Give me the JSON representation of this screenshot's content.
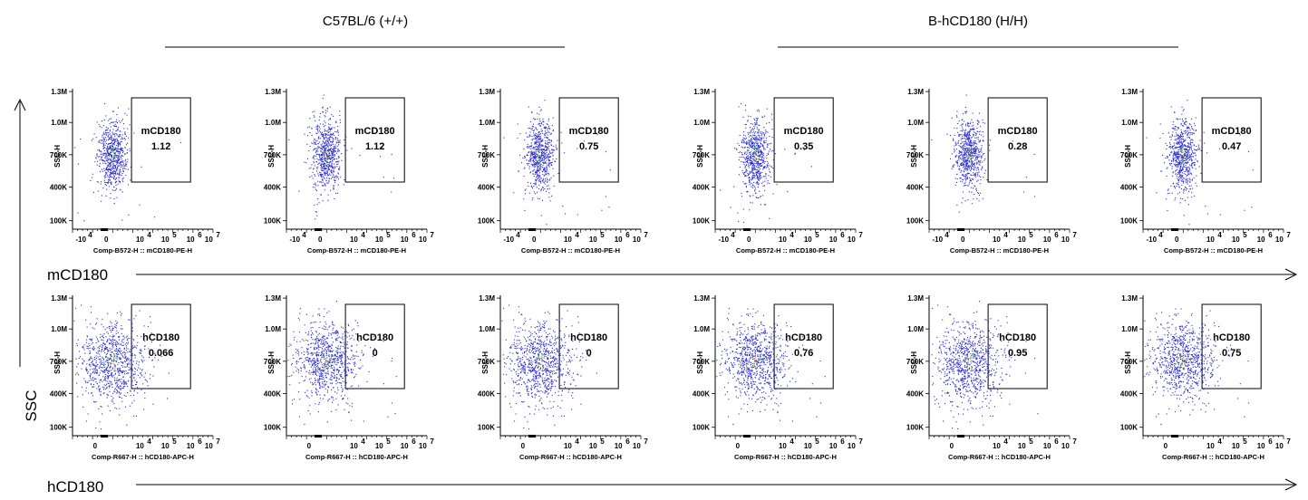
{
  "groups": {
    "left": "C57BL/6 (+/+)",
    "right": "B-hCD180 (H/H)"
  },
  "axes": {
    "y_title": "SSC",
    "row1_x_title": "mCD180",
    "row2_x_title": "hCD180"
  },
  "chart_data": {
    "type": "scatter",
    "description_rows": [
      "mCD180",
      "hCD180"
    ],
    "y_label": "SSC-H",
    "y_ticks": [
      "100K",
      "400K",
      "700K",
      "1.0M",
      "1.3M"
    ],
    "rows": [
      {
        "marker": "mCD180",
        "x_label": "Comp-B572-H :: mCD180-PE-H",
        "x_ticks": [
          {
            "base": "-10",
            "exp": "4"
          },
          {
            "base": "0",
            "exp": ""
          },
          {
            "base": "10",
            "exp": "4"
          },
          {
            "base": "10",
            "exp": "5"
          },
          {
            "base": "10",
            "exp": "6"
          },
          {
            "base": "10",
            "exp": "7"
          }
        ],
        "gates": [
          {
            "group": "C57BL/6 (+/+)",
            "name": "mCD180",
            "value": "1.12"
          },
          {
            "group": "C57BL/6 (+/+)",
            "name": "mCD180",
            "value": "1.12"
          },
          {
            "group": "C57BL/6 (+/+)",
            "name": "mCD180",
            "value": "0.75"
          },
          {
            "group": "B-hCD180 (H/H)",
            "name": "mCD180",
            "value": "0.35"
          },
          {
            "group": "B-hCD180 (H/H)",
            "name": "mCD180",
            "value": "0.28"
          },
          {
            "group": "B-hCD180 (H/H)",
            "name": "mCD180",
            "value": "0.47"
          }
        ]
      },
      {
        "marker": "hCD180",
        "x_label": "Comp-R667-H :: hCD180-APC-H",
        "x_ticks": [
          {
            "base": "0",
            "exp": ""
          },
          {
            "base": "10",
            "exp": "4"
          },
          {
            "base": "10",
            "exp": "5"
          },
          {
            "base": "10",
            "exp": "6"
          },
          {
            "base": "10",
            "exp": "7"
          }
        ],
        "gates": [
          {
            "group": "C57BL/6 (+/+)",
            "name": "hCD180",
            "value": "0.066"
          },
          {
            "group": "C57BL/6 (+/+)",
            "name": "hCD180",
            "value": "0"
          },
          {
            "group": "C57BL/6 (+/+)",
            "name": "hCD180",
            "value": "0"
          },
          {
            "group": "B-hCD180 (H/H)",
            "name": "hCD180",
            "value": "0.76"
          },
          {
            "group": "B-hCD180 (H/H)",
            "name": "hCD180",
            "value": "0.95"
          },
          {
            "group": "B-hCD180 (H/H)",
            "name": "hCD180",
            "value": "0.75"
          }
        ]
      }
    ],
    "colors": {
      "dots": "#2a2ad6",
      "dense": "#1f8a3a",
      "hot": "#c0392b"
    }
  }
}
